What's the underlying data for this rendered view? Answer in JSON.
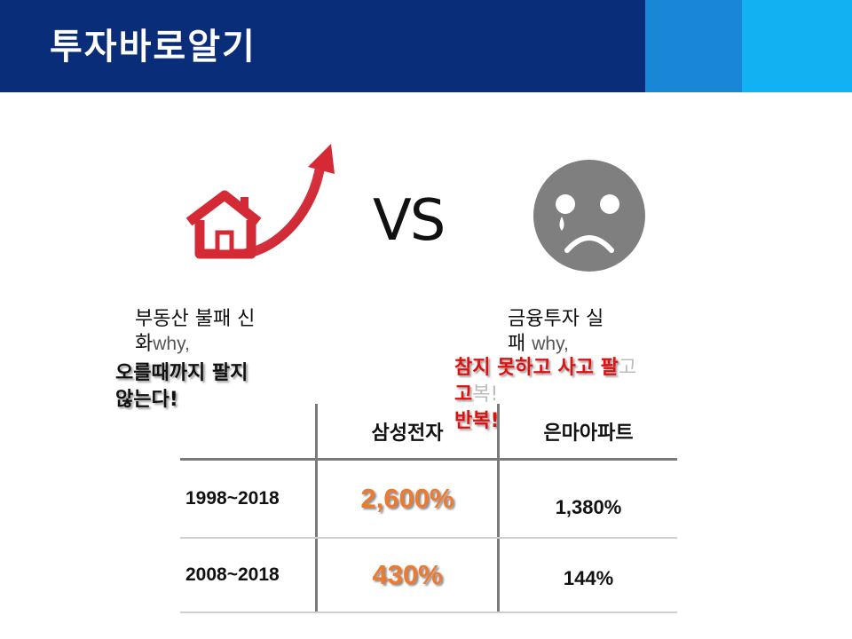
{
  "header": {
    "title": "투자바로알기",
    "accent_colors": [
      "#0a2d7a",
      "#1a87d6",
      "#12b1f2"
    ]
  },
  "comparison": {
    "vs_label": "VS",
    "left_icon": "house-rising-arrow-icon",
    "right_icon": "sad-face-icon",
    "left_caption": {
      "line1": "부동산 불패 신",
      "line2_ko": "화",
      "line2_en": "why,"
    },
    "right_caption": {
      "line1": "금융투자 실",
      "line2_ko": "패",
      "line2_en": "why,"
    },
    "left_note": {
      "line1": "오를때까지 팔지",
      "line2": "않는다!"
    },
    "right_note": {
      "line1_main": "참지 못하고 사고 팔",
      "line1_faded": "고",
      "line2_main": "고",
      "line2_faded": "복!",
      "line3": "반복!"
    }
  },
  "table": {
    "headers": [
      "",
      "삼성전자",
      "은마아파트"
    ],
    "rows": [
      {
        "period": "1998~2018",
        "samsung": "2,600%",
        "eunma": "1,380%"
      },
      {
        "period": "2008~2018",
        "samsung": "430%",
        "eunma": "144%"
      }
    ]
  }
}
